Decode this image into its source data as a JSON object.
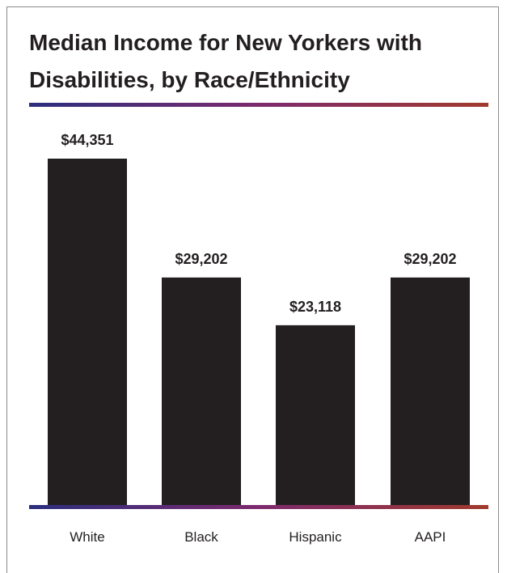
{
  "chart_data": {
    "type": "bar",
    "title": "Median Income for New Yorkers with Disabilities, by Race/Ethnicity",
    "categories": [
      "White",
      "Black",
      "Hispanic",
      "AAPI"
    ],
    "values": [
      44351,
      29202,
      23118,
      29202
    ],
    "value_labels": [
      "$44,351",
      "$29,202",
      "$23,118",
      "$29,202"
    ],
    "ylim": [
      0,
      45000
    ],
    "grid": false,
    "legend": "none",
    "colors": {
      "bar": "#231f20",
      "text": "#231f20",
      "rule_start": "#2b2f7e",
      "rule_mid": "#7d2a6e",
      "rule_end": "#a13a2e"
    }
  }
}
